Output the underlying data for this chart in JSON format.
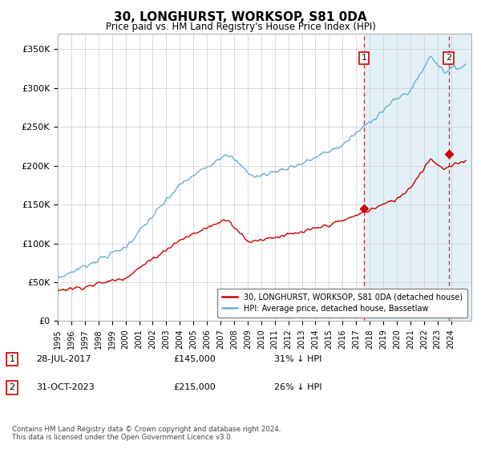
{
  "title": "30, LONGHURST, WORKSOP, S81 0DA",
  "subtitle": "Price paid vs. HM Land Registry's House Price Index (HPI)",
  "ylabel_ticks": [
    "£0",
    "£50K",
    "£100K",
    "£150K",
    "£200K",
    "£250K",
    "£300K",
    "£350K"
  ],
  "ytick_vals": [
    0,
    50000,
    100000,
    150000,
    200000,
    250000,
    300000,
    350000
  ],
  "ylim": [
    0,
    370000
  ],
  "xlim_start": 1995.0,
  "xlim_end": 2025.5,
  "hpi_color": "#6baed6",
  "hpi_fill_color": "#d6eaf8",
  "price_color": "#cc0000",
  "vline_color": "#cc0000",
  "marker1_x": 2017.57,
  "marker1_y": 145000,
  "marker2_x": 2023.83,
  "marker2_y": 215000,
  "vline1_x": 2017.57,
  "vline2_x": 2023.83,
  "legend_label1": "30, LONGHURST, WORKSOP, S81 0DA (detached house)",
  "legend_label2": "HPI: Average price, detached house, Bassetlaw",
  "note1_num": "1",
  "note1_date": "28-JUL-2017",
  "note1_price": "£145,000",
  "note1_pct": "31% ↓ HPI",
  "note2_num": "2",
  "note2_date": "31-OCT-2023",
  "note2_price": "£215,000",
  "note2_pct": "26% ↓ HPI",
  "footer": "Contains HM Land Registry data © Crown copyright and database right 2024.\nThis data is licensed under the Open Government Licence v3.0.",
  "background_color": "#ffffff",
  "grid_color": "#cccccc"
}
